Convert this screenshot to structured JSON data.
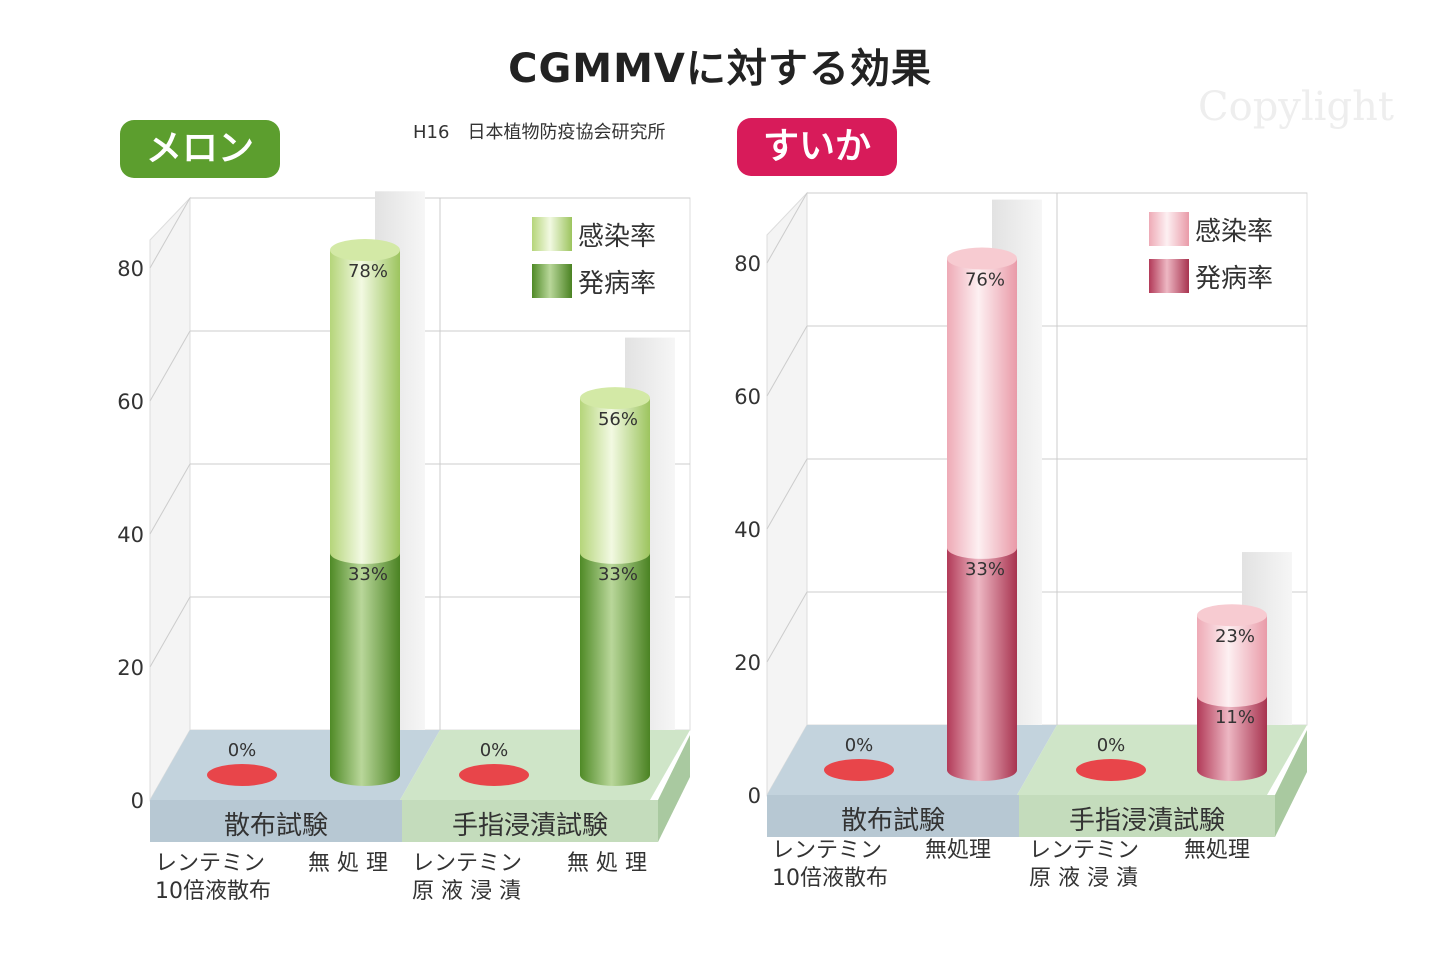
{
  "title": "CGMMVに対する効果",
  "source": "H16　日本植物防疫協会研究所",
  "watermark": "Copylight",
  "chart_data": [
    {
      "type": "bar",
      "badge": "メロン",
      "ylim": [
        0,
        80
      ],
      "yticks": [
        "0",
        "20",
        "40",
        "60",
        "80"
      ],
      "groups": [
        "散布試験",
        "手指浸漬試験"
      ],
      "categories": [
        [
          "レンテミン",
          "10倍液散布"
        ],
        [
          "無 処 理"
        ],
        [
          "レンテミン",
          "原 液 浸 漬"
        ],
        [
          "無 処 理"
        ]
      ],
      "series": [
        {
          "name": "感染率",
          "values": [
            0,
            78,
            0,
            56
          ]
        },
        {
          "name": "発病率",
          "values": [
            0,
            33,
            0,
            33
          ]
        }
      ],
      "data_labels": {
        "infection": [
          "0%",
          "78%",
          "0%",
          "56%"
        ],
        "disease": [
          "",
          "33%",
          "",
          "33%"
        ]
      },
      "colors": {
        "light": "#d3e9a6",
        "dark": "#6ea83c",
        "edge": "#4f8a26"
      },
      "legend": "top-right"
    },
    {
      "type": "bar",
      "badge": "すいか",
      "ylim": [
        0,
        80
      ],
      "yticks": [
        "0",
        "20",
        "40",
        "60",
        "80"
      ],
      "groups": [
        "散布試験",
        "手指浸漬試験"
      ],
      "categories": [
        [
          "レンテミン",
          "10倍液散布"
        ],
        [
          "無処理"
        ],
        [
          "レンテミン",
          "原 液 浸 漬"
        ],
        [
          "無処理"
        ]
      ],
      "series": [
        {
          "name": "感染率",
          "values": [
            0,
            76,
            0,
            23
          ]
        },
        {
          "name": "発病率",
          "values": [
            0,
            33,
            0,
            11
          ]
        }
      ],
      "data_labels": {
        "infection": [
          "0%",
          "76%",
          "0%",
          "23%"
        ],
        "disease": [
          "",
          "33%",
          "",
          "11%"
        ]
      },
      "colors": {
        "light": "#f7cbd1",
        "dark": "#cc5a74",
        "edge": "#a8334f"
      },
      "legend": "top-right"
    }
  ],
  "zero_marker_color": "#e8454a",
  "floor_colors": [
    "#c3d3dd",
    "#cfe5c8"
  ]
}
